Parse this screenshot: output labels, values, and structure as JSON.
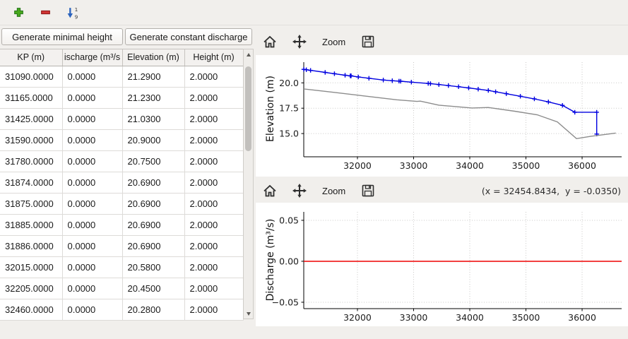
{
  "left_panel": {
    "buttons": {
      "minimal_height": "Generate minimal height",
      "constant_discharge": "Generate constant discharge"
    },
    "table": {
      "columns": [
        "KP (m)",
        "ischarge (m³/s",
        "Elevation (m)",
        "Height (m)"
      ],
      "rows": [
        [
          "31090.0000",
          "0.0000",
          "21.2900",
          "2.0000"
        ],
        [
          "31165.0000",
          "0.0000",
          "21.2300",
          "2.0000"
        ],
        [
          "31425.0000",
          "0.0000",
          "21.0300",
          "2.0000"
        ],
        [
          "31590.0000",
          "0.0000",
          "20.9000",
          "2.0000"
        ],
        [
          "31780.0000",
          "0.0000",
          "20.7500",
          "2.0000"
        ],
        [
          "31874.0000",
          "0.0000",
          "20.6900",
          "2.0000"
        ],
        [
          "31875.0000",
          "0.0000",
          "20.6900",
          "2.0000"
        ],
        [
          "31885.0000",
          "0.0000",
          "20.6900",
          "2.0000"
        ],
        [
          "31886.0000",
          "0.0000",
          "20.6900",
          "2.0000"
        ],
        [
          "32015.0000",
          "0.0000",
          "20.5800",
          "2.0000"
        ],
        [
          "32205.0000",
          "0.0000",
          "20.4500",
          "2.0000"
        ],
        [
          "32460.0000",
          "0.0000",
          "20.2800",
          "2.0000"
        ]
      ]
    }
  },
  "plots": {
    "zoom_label": "Zoom",
    "coords_readout": "(x = 32454.8434,  y = -0.0350)"
  },
  "chart_data": [
    {
      "type": "line",
      "title": "",
      "xlabel": "",
      "ylabel": "Elevation (m)",
      "xlim": [
        31044,
        36704
      ],
      "ylim": [
        12.71,
        22.04
      ],
      "xticks": [
        32000,
        33000,
        34000,
        35000,
        36000
      ],
      "xtick_labels": [
        "32000",
        "33000",
        "34000",
        "35000",
        "36000"
      ],
      "yticks": [
        15.0,
        17.5,
        20.0
      ],
      "ytick_labels": [
        "15.0",
        "17.5",
        "20.0"
      ],
      "grid": "dotted",
      "legend": "none",
      "series": [
        {
          "name": "water-elevation-profile",
          "color": "#0000e0",
          "marker": "+",
          "points": [
            [
              31044,
              21.33
            ],
            [
              31090,
              21.29
            ],
            [
              31165,
              21.23
            ],
            [
              31425,
              21.03
            ],
            [
              31590,
              20.9
            ],
            [
              31780,
              20.75
            ],
            [
              31874,
              20.69
            ],
            [
              31875,
              20.69
            ],
            [
              31885,
              20.69
            ],
            [
              31886,
              20.69
            ],
            [
              32015,
              20.58
            ],
            [
              32205,
              20.45
            ],
            [
              32460,
              20.28
            ],
            [
              32620,
              20.21
            ],
            [
              32740,
              20.17
            ],
            [
              32770,
              20.16
            ],
            [
              32960,
              20.07
            ],
            [
              33260,
              19.94
            ],
            [
              33300,
              19.92
            ],
            [
              33450,
              19.83
            ],
            [
              33620,
              19.73
            ],
            [
              33800,
              19.62
            ],
            [
              33980,
              19.5
            ],
            [
              34150,
              19.38
            ],
            [
              34330,
              19.25
            ],
            [
              34460,
              19.12
            ],
            [
              34650,
              18.93
            ],
            [
              34900,
              18.68
            ],
            [
              35150,
              18.42
            ],
            [
              35400,
              18.12
            ],
            [
              35650,
              17.78
            ],
            [
              35870,
              17.1
            ],
            [
              36260,
              17.1
            ],
            [
              36260,
              14.95
            ]
          ]
        },
        {
          "name": "bed-elevation-profile",
          "color": "#8c8c8c",
          "marker": null,
          "points": [
            [
              31044,
              19.4
            ],
            [
              31600,
              19.05
            ],
            [
              32100,
              18.72
            ],
            [
              32700,
              18.33
            ],
            [
              33060,
              18.17
            ],
            [
              33120,
              18.2
            ],
            [
              33450,
              17.8
            ],
            [
              34040,
              17.52
            ],
            [
              34330,
              17.57
            ],
            [
              34800,
              17.2
            ],
            [
              35200,
              16.85
            ],
            [
              35560,
              16.15
            ],
            [
              35900,
              14.5
            ],
            [
              36150,
              14.72
            ],
            [
              36600,
              15.05
            ]
          ]
        }
      ]
    },
    {
      "type": "line",
      "title": "",
      "xlabel": "",
      "ylabel": "Discharge (m³/s)",
      "xlim": [
        31044,
        36704
      ],
      "ylim": [
        -0.0578,
        0.0603
      ],
      "xticks": [
        32000,
        33000,
        34000,
        35000,
        36000
      ],
      "xtick_labels": [
        "32000",
        "33000",
        "34000",
        "35000",
        "36000"
      ],
      "yticks": [
        0.05,
        0.0,
        -0.05
      ],
      "ytick_labels": [
        "0.05",
        "0.00",
        "−0.05"
      ],
      "grid": "dotted",
      "legend": "none",
      "series": [
        {
          "name": "discharge-line",
          "color": "#ee0000",
          "marker": null,
          "points": [
            [
              31044,
              0.0
            ],
            [
              36704,
              0.0
            ]
          ]
        }
      ]
    }
  ]
}
